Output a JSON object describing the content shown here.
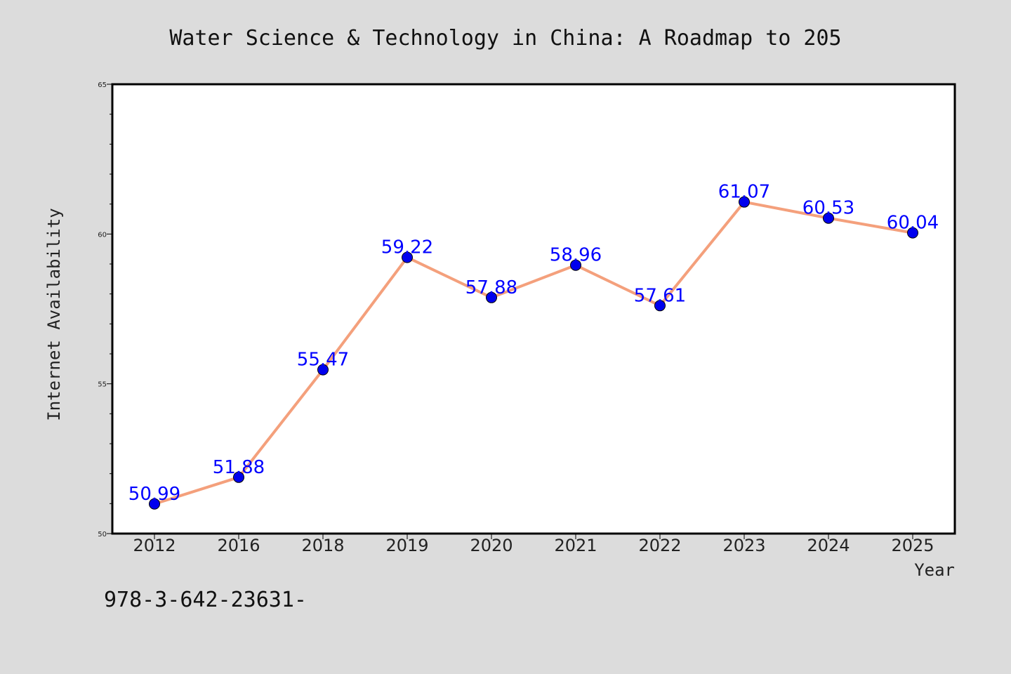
{
  "chart_data": {
    "type": "line",
    "title": "Water Science & Technology in China: A Roadmap to 205",
    "xlabel": "Year",
    "ylabel": "Internet Availability",
    "categories": [
      "2012",
      "2016",
      "2018",
      "2019",
      "2020",
      "2021",
      "2022",
      "2023",
      "2024",
      "2025"
    ],
    "values": [
      50.99,
      51.88,
      55.47,
      59.22,
      57.88,
      58.96,
      57.61,
      61.07,
      60.53,
      60.04
    ],
    "data_labels": [
      "50.99",
      "51.88",
      "55.47",
      "59.22",
      "57.88",
      "58.96",
      "57.61",
      "61.07",
      "60.53",
      "60.04"
    ],
    "ylim": [
      50,
      65
    ],
    "y_ticks": [
      50,
      55,
      60,
      65
    ],
    "y_tick_labels": [
      "50",
      "55",
      "60",
      "65"
    ],
    "grid": false,
    "line_color": "#f4a07c",
    "marker_color": "#0000ee",
    "label_color": "#0000ff"
  },
  "footer": {
    "isbn_text": "978-3-642-23631-"
  }
}
